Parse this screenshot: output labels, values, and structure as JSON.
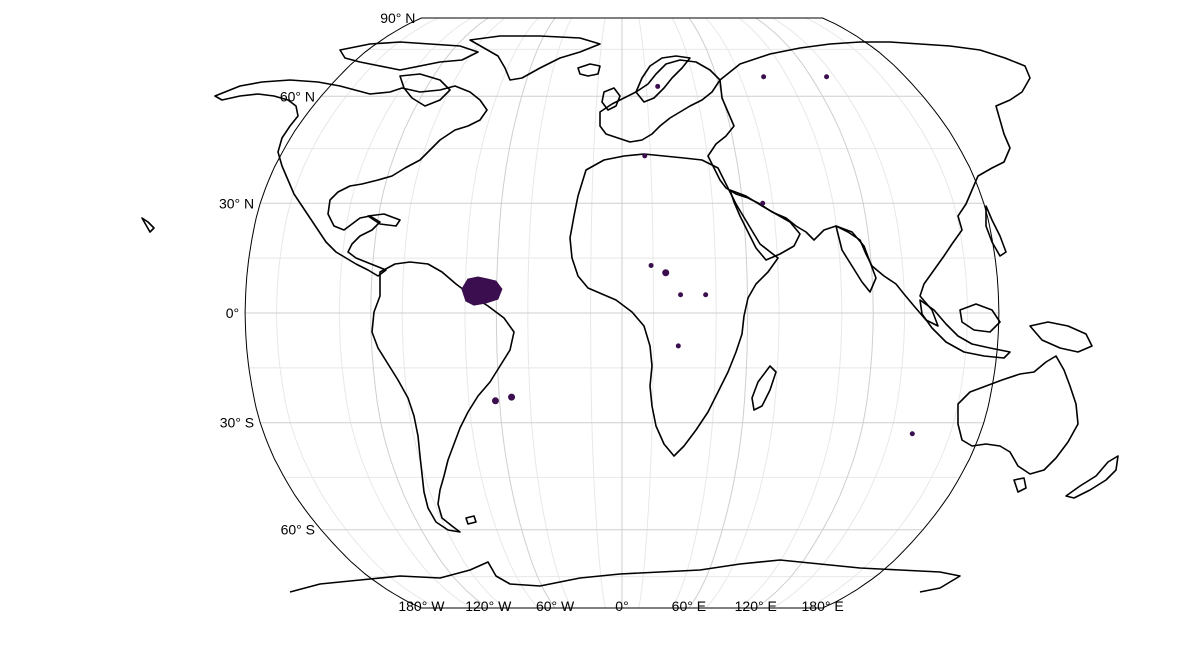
{
  "map": {
    "projection": "Robinson",
    "colors": {
      "data": "#3b0f4f",
      "coastline": "#000000",
      "grid": "#cfcfcf"
    },
    "lon_ticks": [
      {
        "lon": -180,
        "label": "180° W"
      },
      {
        "lon": -120,
        "label": "120° W"
      },
      {
        "lon": -60,
        "label": "60° W"
      },
      {
        "lon": 0,
        "label": "0°"
      },
      {
        "lon": 60,
        "label": "60° E"
      },
      {
        "lon": 120,
        "label": "120° E"
      },
      {
        "lon": 180,
        "label": "180° E"
      }
    ],
    "lat_ticks": [
      {
        "lat": 90,
        "label": "90° N"
      },
      {
        "lat": 60,
        "label": "60° N"
      },
      {
        "lat": 30,
        "label": "30° N"
      },
      {
        "lat": 0,
        "label": "0°"
      },
      {
        "lat": -30,
        "label": "30° S"
      },
      {
        "lat": -60,
        "label": "60° S"
      }
    ],
    "data_regions": [
      {
        "region": "northern South America",
        "lon": -68,
        "lat": 6
      },
      {
        "region": "Gran Chaco",
        "lon": -62,
        "lat": -24
      },
      {
        "region": "southern Brazil",
        "lon": -54,
        "lat": -23
      },
      {
        "region": "Sahel",
        "lon": 21,
        "lat": 11
      },
      {
        "region": "Lake Chad",
        "lon": 14,
        "lat": 13
      },
      {
        "region": "central Africa",
        "lon": 28,
        "lat": 5
      },
      {
        "region": "southern Congo",
        "lon": 27,
        "lat": -9
      },
      {
        "region": "Ethiopia",
        "lon": 40,
        "lat": 5
      },
      {
        "region": "Italy",
        "lon": 12,
        "lat": 43
      },
      {
        "region": "Scandinavia",
        "lon": 22,
        "lat": 63
      },
      {
        "region": "Siberia",
        "lon": 90,
        "lat": 66
      },
      {
        "region": "eastern Siberia",
        "lon": 130,
        "lat": 66
      },
      {
        "region": "Australia",
        "lon": 146,
        "lat": -33
      },
      {
        "region": "Pakistan",
        "lon": 70,
        "lat": 30
      }
    ]
  }
}
